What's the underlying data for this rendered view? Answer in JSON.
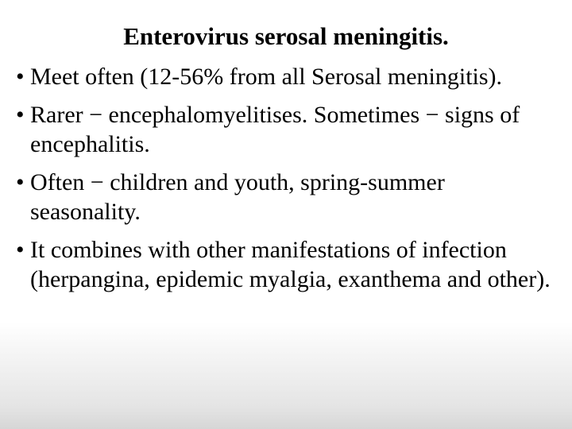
{
  "slide": {
    "title": "Enterovirus serosal meningitis.",
    "bullets": [
      "Meet often (12-56% from all Serosal meningitis).",
      "Rarer − encephalomyelitises. Sometimes − signs of encephalitis.",
      "Often − children and youth, spring-summer seasonality.",
      "It combines with other manifestations of infection (herpangina, epidemic myalgia, exanthema and other)."
    ],
    "title_fontsize": 31,
    "body_fontsize": 30,
    "font_family": "Times New Roman",
    "text_color": "#000000",
    "background_gradient": [
      "#ffffff",
      "#ffffff",
      "#e4e4e4",
      "#d6d6d6"
    ]
  }
}
